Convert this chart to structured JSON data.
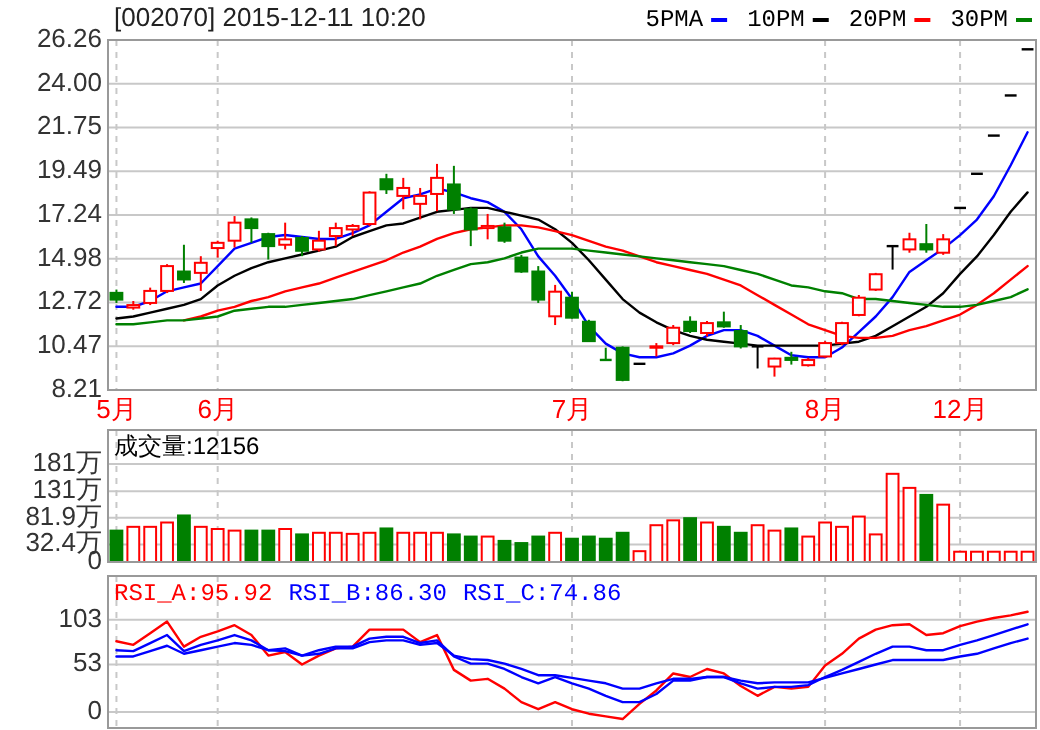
{
  "chart_data": [
    {
      "type": "candlestick",
      "title": "[002070]  2015-12-11  10:20",
      "categories": [
        "5月",
        null,
        null,
        null,
        null,
        null,
        "6月",
        null,
        null,
        null,
        null,
        null,
        null,
        null,
        null,
        null,
        null,
        null,
        null,
        null,
        null,
        null,
        null,
        null,
        null,
        null,
        null,
        "7月",
        null,
        null,
        null,
        null,
        null,
        null,
        null,
        null,
        null,
        null,
        null,
        null,
        null,
        null,
        "8月",
        null,
        null,
        null,
        null,
        null,
        null,
        null,
        "12月",
        null,
        null,
        null,
        null
      ],
      "ohlc": [
        [
          13.22,
          13.39,
          12.7,
          12.87
        ],
        [
          12.46,
          12.8,
          12.35,
          12.59
        ],
        [
          12.7,
          13.49,
          12.59,
          13.32
        ],
        [
          13.32,
          14.7,
          13.21,
          14.6
        ],
        [
          14.32,
          15.7,
          13.73,
          13.91
        ],
        [
          14.25,
          15.11,
          13.32,
          14.77
        ],
        [
          15.53,
          15.91,
          15.04,
          15.8
        ],
        [
          15.91,
          17.18,
          15.56,
          16.84
        ],
        [
          17.01,
          17.11,
          15.8,
          16.56
        ],
        [
          16.25,
          16.32,
          14.94,
          15.63
        ],
        [
          15.7,
          16.84,
          15.46,
          15.98
        ],
        [
          16.05,
          16.15,
          15.11,
          15.39
        ],
        [
          15.46,
          16.42,
          15.35,
          15.91
        ],
        [
          16.15,
          16.84,
          15.63,
          16.56
        ],
        [
          16.49,
          16.77,
          16.15,
          16.67
        ],
        [
          16.77,
          18.46,
          16.67,
          18.39
        ],
        [
          19.08,
          19.36,
          18.32,
          18.56
        ],
        [
          18.22,
          19.15,
          17.53,
          18.63
        ],
        [
          17.81,
          18.63,
          17.01,
          18.22
        ],
        [
          18.32,
          19.87,
          17.43,
          19.15
        ],
        [
          18.81,
          19.77,
          17.29,
          17.53
        ],
        [
          17.53,
          17.63,
          15.63,
          16.49
        ],
        [
          16.56,
          17.29,
          15.98,
          16.67
        ],
        [
          16.6,
          16.84,
          15.8,
          15.91
        ],
        [
          15.04,
          15.18,
          14.25,
          14.32
        ],
        [
          14.32,
          14.6,
          12.7,
          12.87
        ],
        [
          12.01,
          13.63,
          11.56,
          13.28
        ],
        [
          12.97,
          13.28,
          11.9,
          11.94
        ],
        [
          11.73,
          11.83,
          10.73,
          10.73
        ],
        [
          9.76,
          10.39,
          9.76,
          9.76
        ],
        [
          10.39,
          10.46,
          8.66,
          8.73
        ],
        [
          9.56,
          9.56,
          9.56,
          9.56
        ],
        [
          10.39,
          10.63,
          9.94,
          10.46
        ],
        [
          10.63,
          11.56,
          10.52,
          11.42
        ],
        [
          11.73,
          12.01,
          11.15,
          11.25
        ],
        [
          11.15,
          11.77,
          10.97,
          11.66
        ],
        [
          11.7,
          12.25,
          11.42,
          11.49
        ],
        [
          11.25,
          11.56,
          10.35,
          10.46
        ],
        [
          10.46,
          10.46,
          9.32,
          10.46
        ],
        [
          9.42,
          9.87,
          8.9,
          9.83
        ],
        [
          9.87,
          10.18,
          9.52,
          9.76
        ],
        [
          9.49,
          9.87,
          9.42,
          9.76
        ],
        [
          9.94,
          10.73,
          9.87,
          10.63
        ],
        [
          10.63,
          11.73,
          10.52,
          11.66
        ],
        [
          12.08,
          13.11,
          12.01,
          12.97
        ],
        [
          13.39,
          14.25,
          13.32,
          14.18
        ],
        [
          15.63,
          15.63,
          14.42,
          15.63
        ],
        [
          15.46,
          16.32,
          15.29,
          15.98
        ],
        [
          15.73,
          16.77,
          15.29,
          15.46
        ],
        [
          15.29,
          16.25,
          15.18,
          15.98
        ],
        [
          17.6,
          17.6,
          17.6,
          17.6
        ],
        [
          19.36,
          19.36,
          19.36,
          19.36
        ],
        [
          21.33,
          21.33,
          21.33,
          21.33
        ],
        [
          23.4,
          23.4,
          23.4,
          23.4
        ],
        [
          25.78,
          25.78,
          25.78,
          25.78
        ]
      ],
      "colors": [
        "#008000",
        "#ff0000",
        "#ff0000",
        "#ff0000",
        "#008000",
        "#ff0000",
        "#ff0000",
        "#ff0000",
        "#008000",
        "#008000",
        "#ff0000",
        "#008000",
        "#ff0000",
        "#ff0000",
        "#ff0000",
        "#ff0000",
        "#008000",
        "#ff0000",
        "#ff0000",
        "#ff0000",
        "#008000",
        "#008000",
        "#ff0000",
        "#008000",
        "#008000",
        "#008000",
        "#ff0000",
        "#008000",
        "#008000",
        "#008000",
        "#008000",
        "#000000",
        "#ff0000",
        "#ff0000",
        "#008000",
        "#ff0000",
        "#008000",
        "#008000",
        "#000000",
        "#ff0000",
        "#008000",
        "#ff0000",
        "#ff0000",
        "#ff0000",
        "#ff0000",
        "#ff0000",
        "#000000",
        "#ff0000",
        "#008000",
        "#ff0000",
        "#000000",
        "#000000",
        "#000000",
        "#000000",
        "#000000"
      ],
      "series": [
        {
          "name": "5PMA",
          "type": "line",
          "color": "#0000ff",
          "values": [
            12.5,
            12.5,
            12.8,
            13.3,
            13.5,
            13.7,
            14.6,
            15.5,
            15.8,
            16.1,
            16.2,
            16.1,
            16.0,
            16.0,
            16.3,
            16.7,
            17.4,
            18.1,
            18.3,
            18.6,
            18.4,
            18.1,
            17.9,
            17.4,
            16.5,
            15.1,
            14.1,
            12.9,
            11.5,
            10.6,
            10.1,
            9.9,
            9.9,
            10.1,
            10.5,
            11.0,
            11.3,
            11.3,
            11.0,
            10.5,
            10.0,
            9.9,
            9.9,
            10.4,
            11.2,
            12.0,
            13.0,
            14.3,
            14.9,
            15.5,
            16.2,
            17.0,
            18.2,
            19.8,
            21.5
          ]
        },
        {
          "name": "10PM",
          "type": "line",
          "color": "#000000",
          "values": [
            11.9,
            12.0,
            12.2,
            12.4,
            12.6,
            12.9,
            13.6,
            14.1,
            14.5,
            14.8,
            15.0,
            15.2,
            15.4,
            15.6,
            16.1,
            16.4,
            16.7,
            16.8,
            17.1,
            17.4,
            17.5,
            17.6,
            17.6,
            17.4,
            17.2,
            17.0,
            16.5,
            15.8,
            14.9,
            13.9,
            12.9,
            12.2,
            11.7,
            11.3,
            11.0,
            10.8,
            10.7,
            10.6,
            10.5,
            10.5,
            10.5,
            10.5,
            10.5,
            10.6,
            10.7,
            11.0,
            11.5,
            12.0,
            12.5,
            13.2,
            14.2,
            15.1,
            16.2,
            17.4,
            18.4
          ]
        },
        {
          "name": "20PM",
          "type": "line",
          "color": "#ff0000",
          "values": [
            null,
            null,
            null,
            null,
            11.8,
            12.0,
            12.3,
            12.5,
            12.8,
            13.0,
            13.3,
            13.5,
            13.7,
            14.0,
            14.3,
            14.6,
            14.9,
            15.3,
            15.6,
            16.0,
            16.3,
            16.5,
            16.6,
            16.7,
            16.7,
            16.6,
            16.4,
            16.2,
            15.9,
            15.6,
            15.4,
            15.1,
            14.8,
            14.6,
            14.4,
            14.2,
            13.9,
            13.6,
            13.1,
            12.6,
            12.1,
            11.6,
            11.3,
            11.0,
            10.9,
            10.9,
            11.0,
            11.3,
            11.5,
            11.8,
            12.1,
            12.6,
            13.2,
            13.9,
            14.6
          ]
        },
        {
          "name": "30PM",
          "type": "line",
          "color": "#008000",
          "values": [
            11.6,
            11.6,
            11.7,
            11.8,
            11.8,
            11.9,
            12.0,
            12.3,
            12.4,
            12.5,
            12.5,
            12.6,
            12.7,
            12.8,
            12.9,
            13.1,
            13.3,
            13.5,
            13.7,
            14.1,
            14.4,
            14.7,
            14.8,
            15.0,
            15.3,
            15.5,
            15.5,
            15.5,
            15.4,
            15.3,
            15.2,
            15.1,
            15.0,
            14.9,
            14.8,
            14.7,
            14.6,
            14.4,
            14.2,
            13.9,
            13.6,
            13.5,
            13.3,
            13.2,
            12.9,
            12.9,
            12.8,
            12.7,
            12.6,
            12.5,
            12.5,
            12.6,
            12.8,
            13.0,
            13.4
          ]
        }
      ],
      "ylim": [
        8.21,
        26.26
      ],
      "yticks": [
        8.21,
        10.47,
        12.72,
        14.98,
        17.24,
        19.49,
        21.75,
        {
          "value": 24,
          "label": "24.00"
        },
        26.26
      ],
      "grid": true,
      "legend": "top right"
    },
    {
      "type": "bar",
      "categories": [
        null,
        null,
        null,
        null,
        null,
        null,
        null,
        null,
        null,
        null,
        null,
        null,
        null,
        null,
        null,
        null,
        null,
        null,
        null,
        null,
        null,
        null,
        null,
        null,
        null,
        null,
        null,
        null,
        null,
        null,
        null,
        null,
        null,
        null,
        null,
        null,
        null,
        null,
        null,
        null,
        null,
        null,
        null,
        null,
        null,
        null,
        null,
        null,
        null,
        null,
        null,
        null,
        null,
        null,
        null
      ],
      "values": [
        58,
        65,
        65,
        73,
        86,
        65,
        61,
        58,
        58,
        58,
        61,
        51,
        54,
        54,
        52,
        54,
        62,
        54,
        54,
        54,
        51,
        47,
        47,
        39,
        35,
        47,
        54,
        43,
        47,
        43,
        54,
        20,
        68,
        77,
        81,
        73,
        65,
        54,
        68,
        58,
        62,
        47,
        73,
        65,
        84,
        51,
        163,
        137,
        124,
        106,
        19,
        19,
        19,
        19,
        19
      ],
      "colors": [
        "#008000",
        "#ff0000",
        "#ff0000",
        "#ff0000",
        "#008000",
        "#ff0000",
        "#ff0000",
        "#ff0000",
        "#008000",
        "#008000",
        "#ff0000",
        "#008000",
        "#ff0000",
        "#ff0000",
        "#ff0000",
        "#ff0000",
        "#008000",
        "#ff0000",
        "#ff0000",
        "#ff0000",
        "#008000",
        "#008000",
        "#ff0000",
        "#008000",
        "#008000",
        "#008000",
        "#ff0000",
        "#008000",
        "#008000",
        "#008000",
        "#008000",
        "#ff0000",
        "#ff0000",
        "#ff0000",
        "#008000",
        "#ff0000",
        "#008000",
        "#008000",
        "#ff0000",
        "#ff0000",
        "#008000",
        "#ff0000",
        "#ff0000",
        "#ff0000",
        "#ff0000",
        "#ff0000",
        "#ff0000",
        "#ff0000",
        "#008000",
        "#ff0000",
        "#ff0000",
        "#ff0000",
        "#ff0000",
        "#ff0000",
        "#ff0000"
      ],
      "ylim": [
        0,
        244
      ],
      "yticks": [
        0,
        {
          "value": 32.4,
          "label": "32.4万"
        },
        {
          "value": 81.9,
          "label": "81.9万"
        },
        {
          "value": 131,
          "label": "131万"
        },
        {
          "value": 181,
          "label": "181万"
        }
      ],
      "grid": true,
      "tick_labels": "y",
      "annotations": [
        "成交量:12156"
      ]
    },
    {
      "type": "line",
      "categories": [
        null,
        null,
        null,
        null,
        null,
        null,
        null,
        null,
        null,
        null,
        null,
        null,
        null,
        null,
        null,
        null,
        null,
        null,
        null,
        null,
        null,
        null,
        null,
        null,
        null,
        null,
        null,
        null,
        null,
        null,
        null,
        null,
        null,
        null,
        null,
        null,
        null,
        null,
        null,
        null,
        null,
        null,
        null,
        null,
        null,
        null,
        null,
        null,
        null,
        null,
        null,
        null,
        null,
        null,
        null
      ],
      "series": [
        {
          "color": "#ff0000",
          "values": [
            79,
            75,
            88,
            101,
            73,
            84,
            90,
            97,
            86,
            63,
            67,
            53,
            63,
            71,
            73,
            92,
            92,
            92,
            78,
            86,
            47,
            35,
            37,
            26,
            11,
            3,
            11,
            3,
            -2,
            -5,
            -8,
            9,
            24,
            43,
            39,
            48,
            43,
            29,
            18,
            28,
            26,
            28,
            52,
            65,
            82,
            92,
            97,
            98,
            86,
            88,
            96,
            101,
            105,
            108,
            112
          ]
        },
        {
          "color": "#0000ff",
          "values": [
            69,
            68,
            77,
            86,
            68,
            75,
            80,
            86,
            80,
            69,
            71,
            63,
            69,
            73,
            73,
            82,
            84,
            84,
            77,
            80,
            62,
            54,
            54,
            48,
            39,
            32,
            39,
            32,
            26,
            18,
            11,
            11,
            20,
            35,
            35,
            39,
            39,
            32,
            26,
            28,
            28,
            30,
            39,
            47,
            56,
            65,
            73,
            73,
            69,
            69,
            75,
            80,
            86,
            92,
            98
          ]
        },
        {
          "color": "#0000ff",
          "values": [
            62,
            62,
            68,
            74,
            65,
            69,
            73,
            77,
            75,
            69,
            68,
            63,
            65,
            71,
            71,
            78,
            80,
            80,
            75,
            77,
            63,
            59,
            58,
            54,
            48,
            41,
            41,
            38,
            35,
            32,
            26,
            26,
            32,
            37,
            37,
            39,
            39,
            35,
            32,
            33,
            33,
            33,
            38,
            43,
            48,
            53,
            58,
            58,
            58,
            58,
            62,
            65,
            71,
            77,
            82
          ]
        }
      ],
      "ylim": [
        -18,
        152
      ],
      "yticks": [
        0,
        53,
        103
      ],
      "grid": true,
      "tick_labels": "y",
      "annotations": [
        "RSI_A:95.92",
        "RSI_B:86.30",
        "RSI_C:74.86"
      ]
    }
  ]
}
